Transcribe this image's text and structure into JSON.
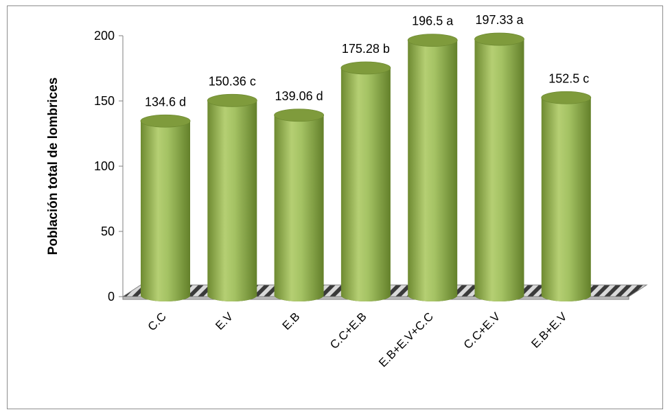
{
  "chart_data": {
    "type": "bar",
    "style": "3d-cylinder",
    "categories": [
      "C.C",
      "E.V",
      "E.B",
      "C.C+E.B",
      "E.B+E.V+C.C",
      "C.C+E.V",
      "E.B+E.V"
    ],
    "values": [
      134.6,
      150.36,
      139.06,
      175.28,
      196.5,
      197.33,
      152.5
    ],
    "data_labels": [
      "134.6 d",
      "150.36 c",
      "139.06 d",
      "175.28 b",
      "196.5 a",
      "197.33 a",
      "152.5 c"
    ],
    "title": "",
    "xlabel": "",
    "ylabel": "Población total de lombrices",
    "ylim": [
      0,
      200
    ],
    "yticks": [
      "0",
      "50",
      "100",
      "150",
      "200"
    ],
    "grid": false,
    "legend": "none",
    "colors": {
      "bar": "#9bbb59",
      "bar_dark": "#6e8a31",
      "bar_light": "#c6dc8c",
      "floor": "#d9d9d9",
      "floor_dark": "#404040"
    }
  }
}
